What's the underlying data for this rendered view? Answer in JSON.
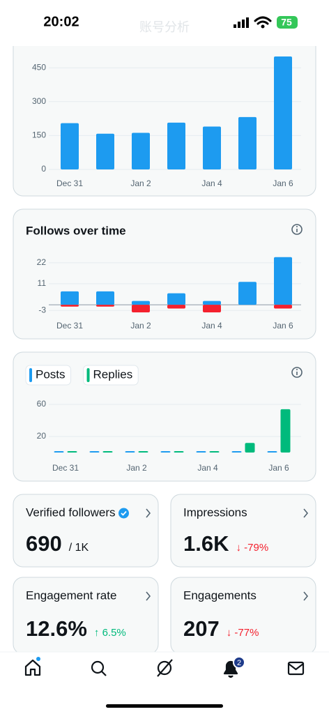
{
  "status": {
    "time": "20:02",
    "battery": "75"
  },
  "header": {
    "title": "账号分析"
  },
  "chart_data": [
    {
      "type": "bar",
      "categories": [
        "Dec 31",
        null,
        "Jan 2",
        null,
        "Jan 4",
        null,
        "Jan 6"
      ],
      "series": [
        {
          "color": "#1d9bf0",
          "values": [
            205,
            158,
            162,
            207,
            190,
            232,
            500
          ]
        }
      ],
      "ylim": [
        0,
        500
      ],
      "yticks": [
        0,
        150,
        300,
        450
      ],
      "grid": true
    },
    {
      "type": "bar",
      "title": "Follows over time",
      "categories": [
        "Dec 31",
        null,
        "Jan 2",
        null,
        "Jan 4",
        null,
        "Jan 6"
      ],
      "series": [
        {
          "color": "#1d9bf0",
          "values": [
            7,
            7,
            2,
            6,
            2,
            12,
            25
          ]
        },
        {
          "color": "#f4212e",
          "values": [
            -1,
            -1,
            -4,
            -2,
            -4,
            0,
            -2
          ]
        }
      ],
      "ylim": [
        -4,
        26
      ],
      "yticks": [
        22,
        11,
        -3
      ],
      "grid": true
    },
    {
      "type": "bar",
      "categories": [
        "Dec 31",
        null,
        "Jan 2",
        null,
        "Jan 4",
        null,
        "Jan 6"
      ],
      "series": [
        {
          "name": "Posts",
          "color": "#1d9bf0",
          "values": [
            0,
            1,
            0,
            1,
            0,
            1,
            1
          ]
        },
        {
          "name": "Replies",
          "color": "#00ba7c",
          "values": [
            0,
            1,
            0,
            1,
            0,
            12,
            54
          ]
        }
      ],
      "ylim": [
        0,
        60
      ],
      "yticks": [
        60,
        20
      ],
      "grid": true,
      "legend": "top-left"
    }
  ],
  "cards": [
    {
      "label": "Verified followers",
      "value": "690",
      "sub": "/ 1K"
    },
    {
      "label": "Impressions",
      "value": "1.6K",
      "change": "↓ -79%",
      "trend": "down"
    },
    {
      "label": "Engagement rate",
      "value": "12.6%",
      "change": "↑ 6.5%",
      "trend": "up"
    },
    {
      "label": "Engagements",
      "value": "207",
      "change": "↓ -77%",
      "trend": "down"
    }
  ],
  "tabbar": {
    "badge": "2"
  }
}
